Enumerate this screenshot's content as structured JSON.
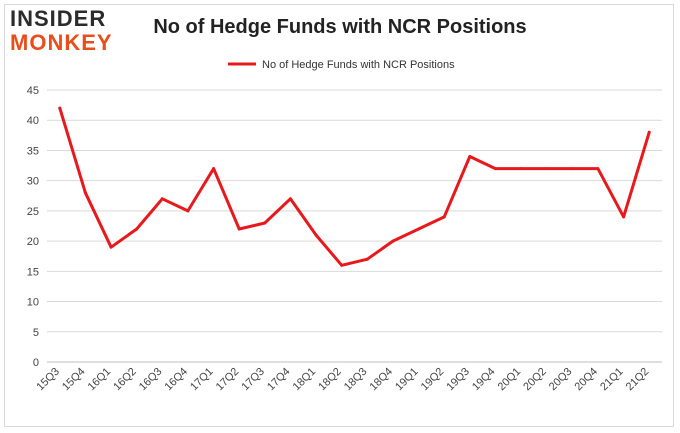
{
  "logo": {
    "line1": "INSIDER",
    "line2": "MONKEY"
  },
  "title": "No of Hedge Funds with NCR Positions",
  "colors": {
    "series": "#e8191d",
    "grid": "#d9d9d9",
    "axis_text": "#444444"
  },
  "chart_data": {
    "type": "line",
    "title": "No of Hedge Funds with NCR Positions",
    "xlabel": "",
    "ylabel": "",
    "ylim": [
      0,
      45
    ],
    "yticks": [
      0,
      5,
      10,
      15,
      20,
      25,
      30,
      35,
      40,
      45
    ],
    "grid": "horizontal",
    "legend": "top-center",
    "categories": [
      "15Q3",
      "15Q4",
      "16Q1",
      "16Q2",
      "16Q3",
      "16Q4",
      "17Q1",
      "17Q2",
      "17Q3",
      "17Q4",
      "18Q1",
      "18Q2",
      "18Q3",
      "18Q4",
      "19Q1",
      "19Q2",
      "19Q3",
      "19Q4",
      "20Q1",
      "20Q2",
      "20Q3",
      "20Q4",
      "21Q1",
      "21Q2"
    ],
    "series": [
      {
        "name": "No of Hedge Funds with NCR Positions",
        "color": "#e8191d",
        "values": [
          42,
          28,
          19,
          22,
          27,
          25,
          32,
          22,
          23,
          27,
          21,
          16,
          17,
          20,
          22,
          24,
          34,
          32,
          32,
          32,
          32,
          32,
          24,
          38
        ]
      }
    ]
  }
}
